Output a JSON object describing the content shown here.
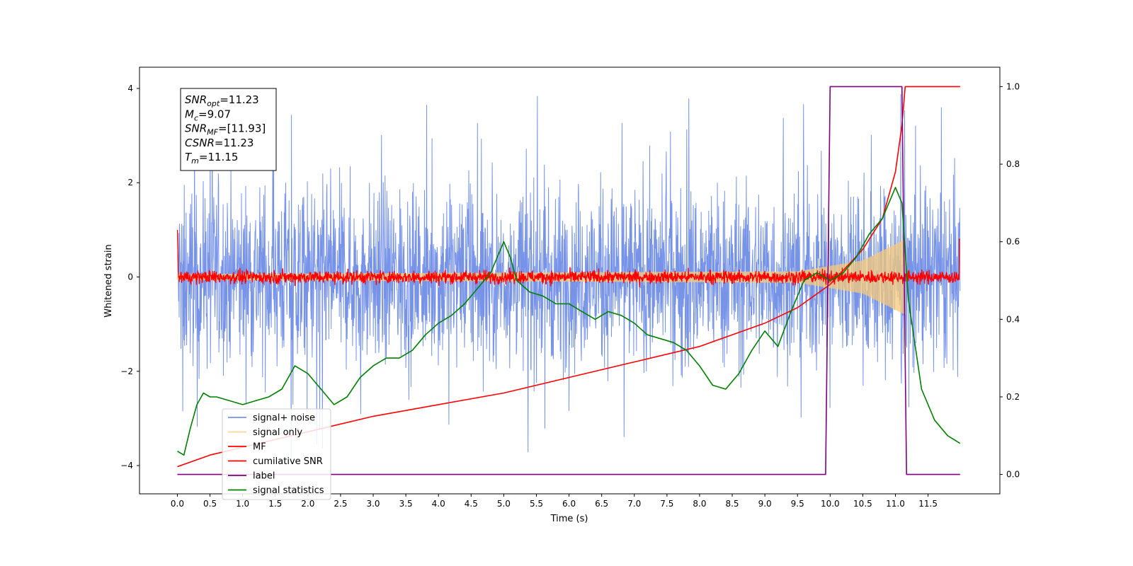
{
  "chart_data": {
    "type": "line",
    "title": "",
    "xlabel": "Time (s)",
    "ylabel": "Whitened strain",
    "xlim": [
      -0.58,
      12.6
    ],
    "ylim": [
      -4.6,
      4.45
    ],
    "y2lim": [
      -0.05,
      1.05
    ],
    "grid": false,
    "legend_position": "lower-left",
    "x_ticks": [
      "0.0",
      "0.5",
      "1.0",
      "1.5",
      "2.0",
      "2.5",
      "3.0",
      "3.5",
      "4.0",
      "4.5",
      "5.0",
      "5.5",
      "6.0",
      "6.5",
      "7.0",
      "7.5",
      "8.0",
      "8.5",
      "9.0",
      "9.5",
      "10.0",
      "10.5",
      "11.0",
      "11.5"
    ],
    "y_ticks": [
      "4",
      "2",
      "0",
      "−2",
      "−4"
    ],
    "y2_ticks": [
      "1.0",
      "0.8",
      "0.6",
      "0.4",
      "0.2",
      "0.0"
    ],
    "annotation": {
      "lines": [
        {
          "label": "SNR",
          "sub": "opt",
          "value": "=11.23"
        },
        {
          "label": "M",
          "sub": "c",
          "value": "=9.07"
        },
        {
          "label": "SNR",
          "sub": "MF",
          "value": "=[11.93]"
        },
        {
          "label": "CSNR",
          "sub": "",
          "value": "=11.23"
        },
        {
          "label": "T",
          "sub": "m",
          "value": "=11.15"
        }
      ]
    },
    "series": [
      {
        "name": "signal+ noise",
        "color": "#7793e8",
        "axis": "left",
        "style": "noise",
        "x_range": [
          0,
          11.99
        ],
        "amplitude": 1.0
      },
      {
        "name": "signal only",
        "color": "#f5c97a",
        "axis": "left",
        "style": "chirp",
        "x_range": [
          0,
          11.15
        ],
        "amplitude_envelope": [
          [
            0,
            0.06
          ],
          [
            9.5,
            0.12
          ],
          [
            10.5,
            0.35
          ],
          [
            11.15,
            0.8
          ]
        ]
      },
      {
        "name": "MF",
        "color": "#ff0000",
        "axis": "left",
        "style": "noise-small",
        "x_range": [
          0,
          11.99
        ],
        "amplitude": 0.07
      },
      {
        "name": "cumilative SNR",
        "color": "#ff0000",
        "axis": "right",
        "x": [
          0,
          0.5,
          1,
          2,
          3,
          4,
          5,
          6,
          7,
          8,
          8.5,
          9,
          9.5,
          10,
          10.5,
          10.8,
          11,
          11.1,
          11.15,
          11.99
        ],
        "values": [
          0.02,
          0.05,
          0.07,
          0.11,
          0.15,
          0.18,
          0.21,
          0.25,
          0.29,
          0.33,
          0.36,
          0.39,
          0.43,
          0.49,
          0.58,
          0.66,
          0.78,
          0.9,
          1.0,
          1.0
        ]
      },
      {
        "name": "label",
        "color": "#800080",
        "axis": "right",
        "x": [
          0,
          9.93,
          10.0,
          11.1,
          11.17,
          11.99
        ],
        "values": [
          0,
          0,
          1,
          1,
          0,
          0
        ]
      },
      {
        "name": "signal statistics",
        "color": "#008000",
        "axis": "right",
        "x": [
          0,
          0.1,
          0.2,
          0.3,
          0.4,
          0.5,
          0.6,
          0.8,
          1.0,
          1.2,
          1.4,
          1.6,
          1.8,
          2.0,
          2.2,
          2.4,
          2.6,
          2.8,
          3.0,
          3.2,
          3.4,
          3.6,
          3.8,
          4.0,
          4.2,
          4.4,
          4.6,
          4.8,
          5.0,
          5.1,
          5.2,
          5.4,
          5.6,
          5.8,
          6.0,
          6.2,
          6.4,
          6.6,
          6.8,
          7.0,
          7.2,
          7.4,
          7.6,
          7.8,
          8.0,
          8.2,
          8.4,
          8.6,
          8.8,
          9.0,
          9.2,
          9.4,
          9.6,
          9.8,
          10.0,
          10.2,
          10.4,
          10.6,
          10.8,
          11.0,
          11.1,
          11.2,
          11.4,
          11.6,
          11.8,
          11.99
        ],
        "values": [
          0.06,
          0.05,
          0.12,
          0.18,
          0.21,
          0.2,
          0.2,
          0.19,
          0.18,
          0.19,
          0.2,
          0.22,
          0.28,
          0.26,
          0.22,
          0.18,
          0.2,
          0.25,
          0.28,
          0.3,
          0.3,
          0.32,
          0.36,
          0.39,
          0.41,
          0.44,
          0.48,
          0.52,
          0.6,
          0.56,
          0.5,
          0.47,
          0.46,
          0.44,
          0.44,
          0.42,
          0.4,
          0.42,
          0.41,
          0.39,
          0.36,
          0.35,
          0.34,
          0.32,
          0.28,
          0.23,
          0.22,
          0.26,
          0.32,
          0.37,
          0.33,
          0.42,
          0.5,
          0.52,
          0.5,
          0.52,
          0.56,
          0.62,
          0.66,
          0.74,
          0.7,
          0.45,
          0.22,
          0.14,
          0.1,
          0.08
        ]
      }
    ]
  }
}
